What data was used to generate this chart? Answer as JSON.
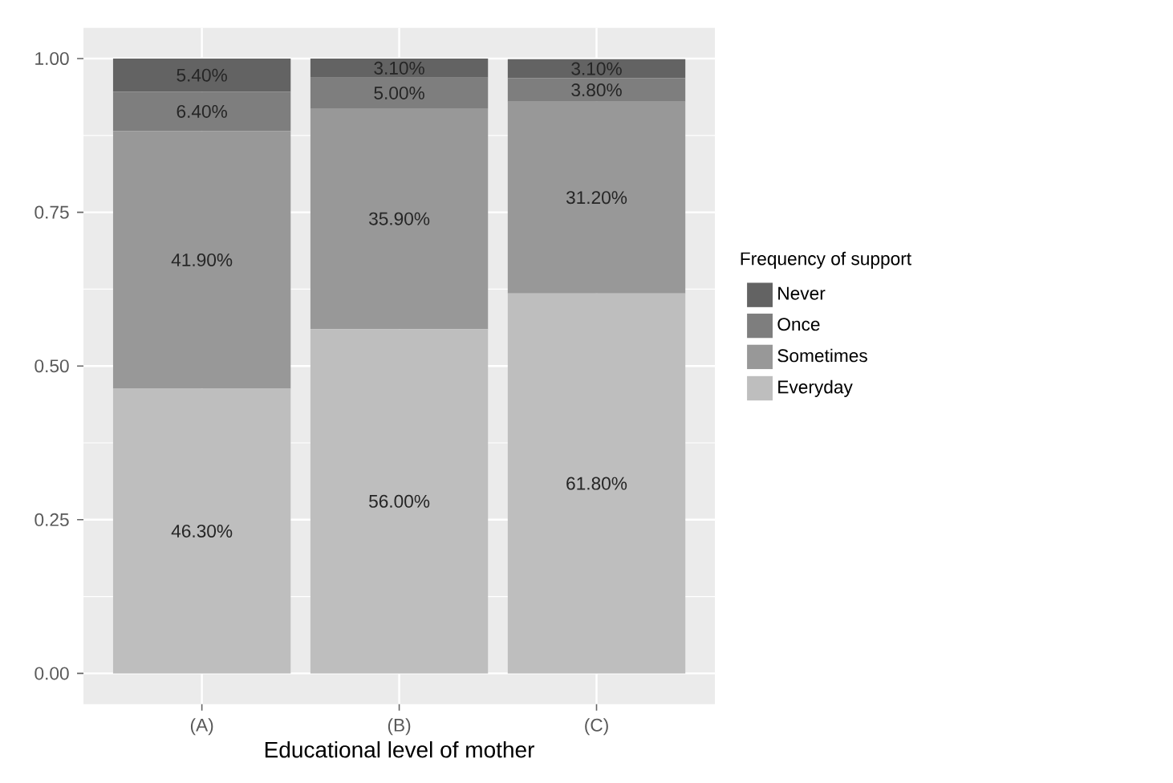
{
  "chart_data": {
    "type": "bar",
    "stacked": true,
    "xlabel": "Educational level of mother",
    "legend_title": "Frequency of support",
    "legend": "right",
    "grid": true,
    "categories": [
      "(A)",
      "(B)",
      "(C)"
    ],
    "ylim": [
      -0.05,
      1.05
    ],
    "yticks": [
      {
        "value": 0,
        "label": "0.00"
      },
      {
        "value": 0.25,
        "label": "0.25"
      },
      {
        "value": 0.5,
        "label": "0.50"
      },
      {
        "value": 0.75,
        "label": "0.75"
      },
      {
        "value": 1,
        "label": "1.00"
      }
    ],
    "series": [
      {
        "name": "Everyday",
        "color": "#bebebe",
        "values": [
          0.463,
          0.56,
          0.618
        ],
        "value_labels": [
          "46.30%",
          "56.00%",
          "61.80%"
        ]
      },
      {
        "name": "Sometimes",
        "color": "#989898",
        "values": [
          0.419,
          0.359,
          0.312
        ],
        "value_labels": [
          "41.90%",
          "35.90%",
          "31.20%"
        ]
      },
      {
        "name": "Once",
        "color": "#7e7e7e",
        "values": [
          0.064,
          0.05,
          0.038
        ],
        "value_labels": [
          "6.40%",
          "5.00%",
          "3.80%"
        ]
      },
      {
        "name": "Never",
        "color": "#636363",
        "values": [
          0.054,
          0.031,
          0.031
        ],
        "value_labels": [
          "5.40%",
          "3.10%",
          "3.10%"
        ]
      }
    ]
  }
}
